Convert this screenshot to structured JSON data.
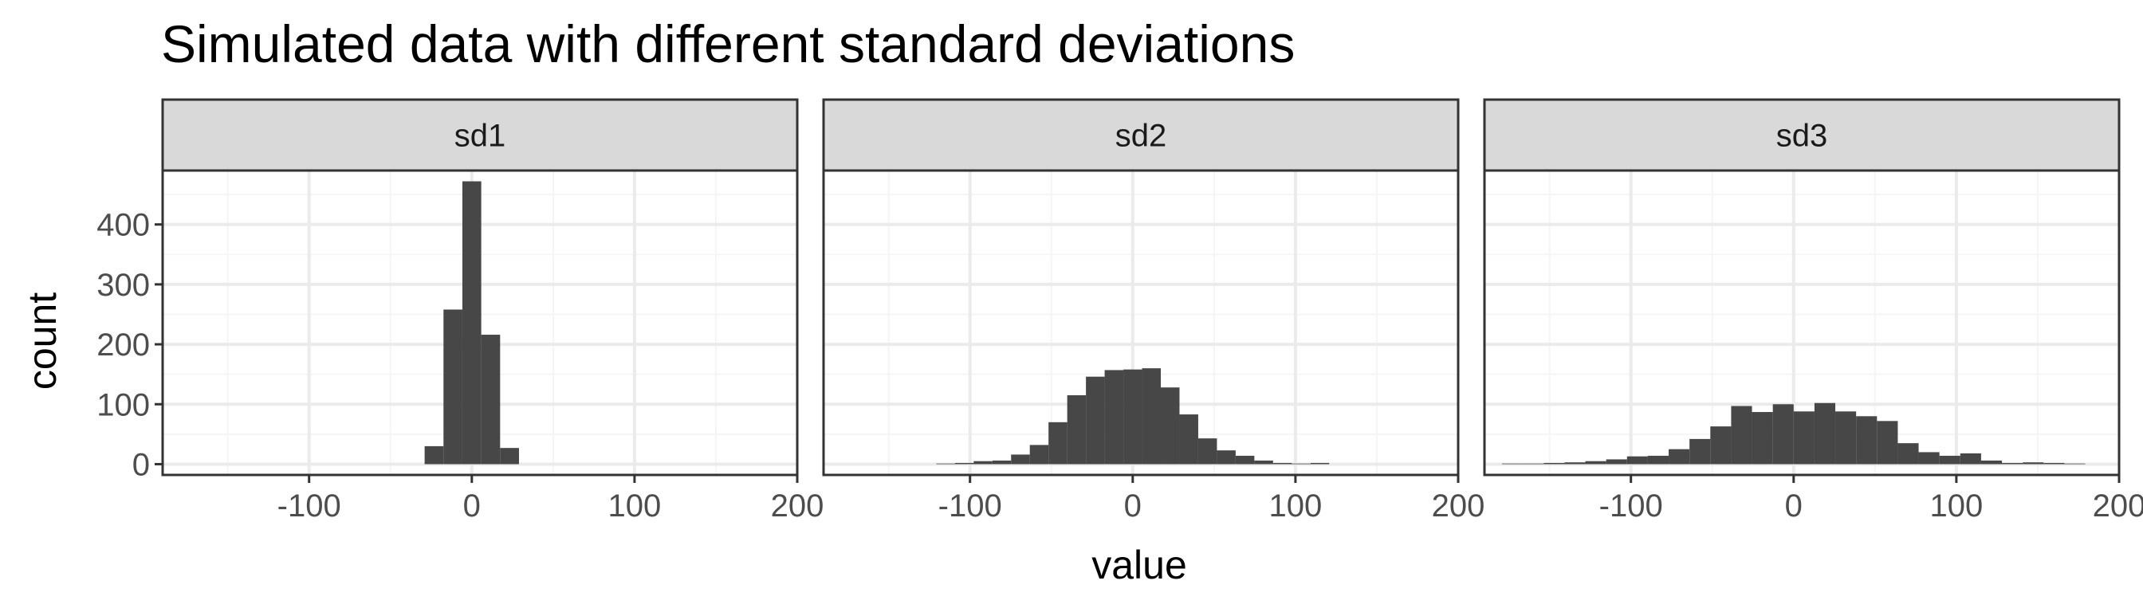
{
  "chart_data": {
    "type": "bar",
    "title": "Simulated data with different standard deviations",
    "xlabel": "value",
    "ylabel": "count",
    "xlim": [
      -190,
      200
    ],
    "ylim": [
      -18,
      490
    ],
    "x_ticks": [
      -100,
      0,
      100,
      200
    ],
    "x_tick_labels": [
      "-100",
      "0",
      "100",
      "200"
    ],
    "y_ticks": [
      0,
      100,
      200,
      300,
      400
    ],
    "y_tick_labels": [
      "0",
      "100",
      "200",
      "300",
      "400"
    ],
    "grid": true,
    "facets": [
      {
        "label": "sd1",
        "bin_width": 11.6,
        "x": [
          -23.2,
          -11.6,
          0,
          11.6,
          23.2
        ],
        "values": [
          30,
          258,
          472,
          216,
          27
        ]
      },
      {
        "label": "sd2",
        "bin_width": 11.5,
        "x": [
          -115,
          -103.5,
          -92,
          -80.5,
          -69,
          -57.5,
          -46,
          -34.5,
          -23,
          -11.5,
          0,
          11.5,
          23,
          34.5,
          46,
          57.5,
          69,
          80.5,
          92,
          103.5,
          115
        ],
        "values": [
          1,
          2,
          5,
          6,
          16,
          32,
          70,
          115,
          146,
          157,
          158,
          160,
          128,
          83,
          43,
          23,
          14,
          6,
          2,
          1,
          2
        ]
      },
      {
        "label": "sd3",
        "bin_width": 12.8,
        "x": [
          -172.8,
          -160,
          -147.2,
          -134.4,
          -121.6,
          -108.8,
          -96,
          -83.2,
          -70.4,
          -57.6,
          -44.8,
          -32,
          -19.2,
          -6.4,
          6.4,
          19.2,
          32,
          44.8,
          57.6,
          70.4,
          83.2,
          96,
          108.8,
          121.6,
          134.4,
          147.2,
          160,
          172.8
        ],
        "values": [
          1,
          1,
          2,
          3,
          5,
          8,
          13,
          14,
          25,
          42,
          63,
          97,
          87,
          100,
          88,
          102,
          88,
          80,
          72,
          35,
          20,
          14,
          18,
          6,
          2,
          3,
          2,
          1
        ]
      }
    ]
  },
  "colors": {
    "bar": "#474747",
    "strip_fill": "#d9d9d9",
    "panel_border": "#333333",
    "grid_major": "#ebebeb",
    "grid_minor": "#f5f5f5",
    "tick_text": "#4d4d4d"
  }
}
